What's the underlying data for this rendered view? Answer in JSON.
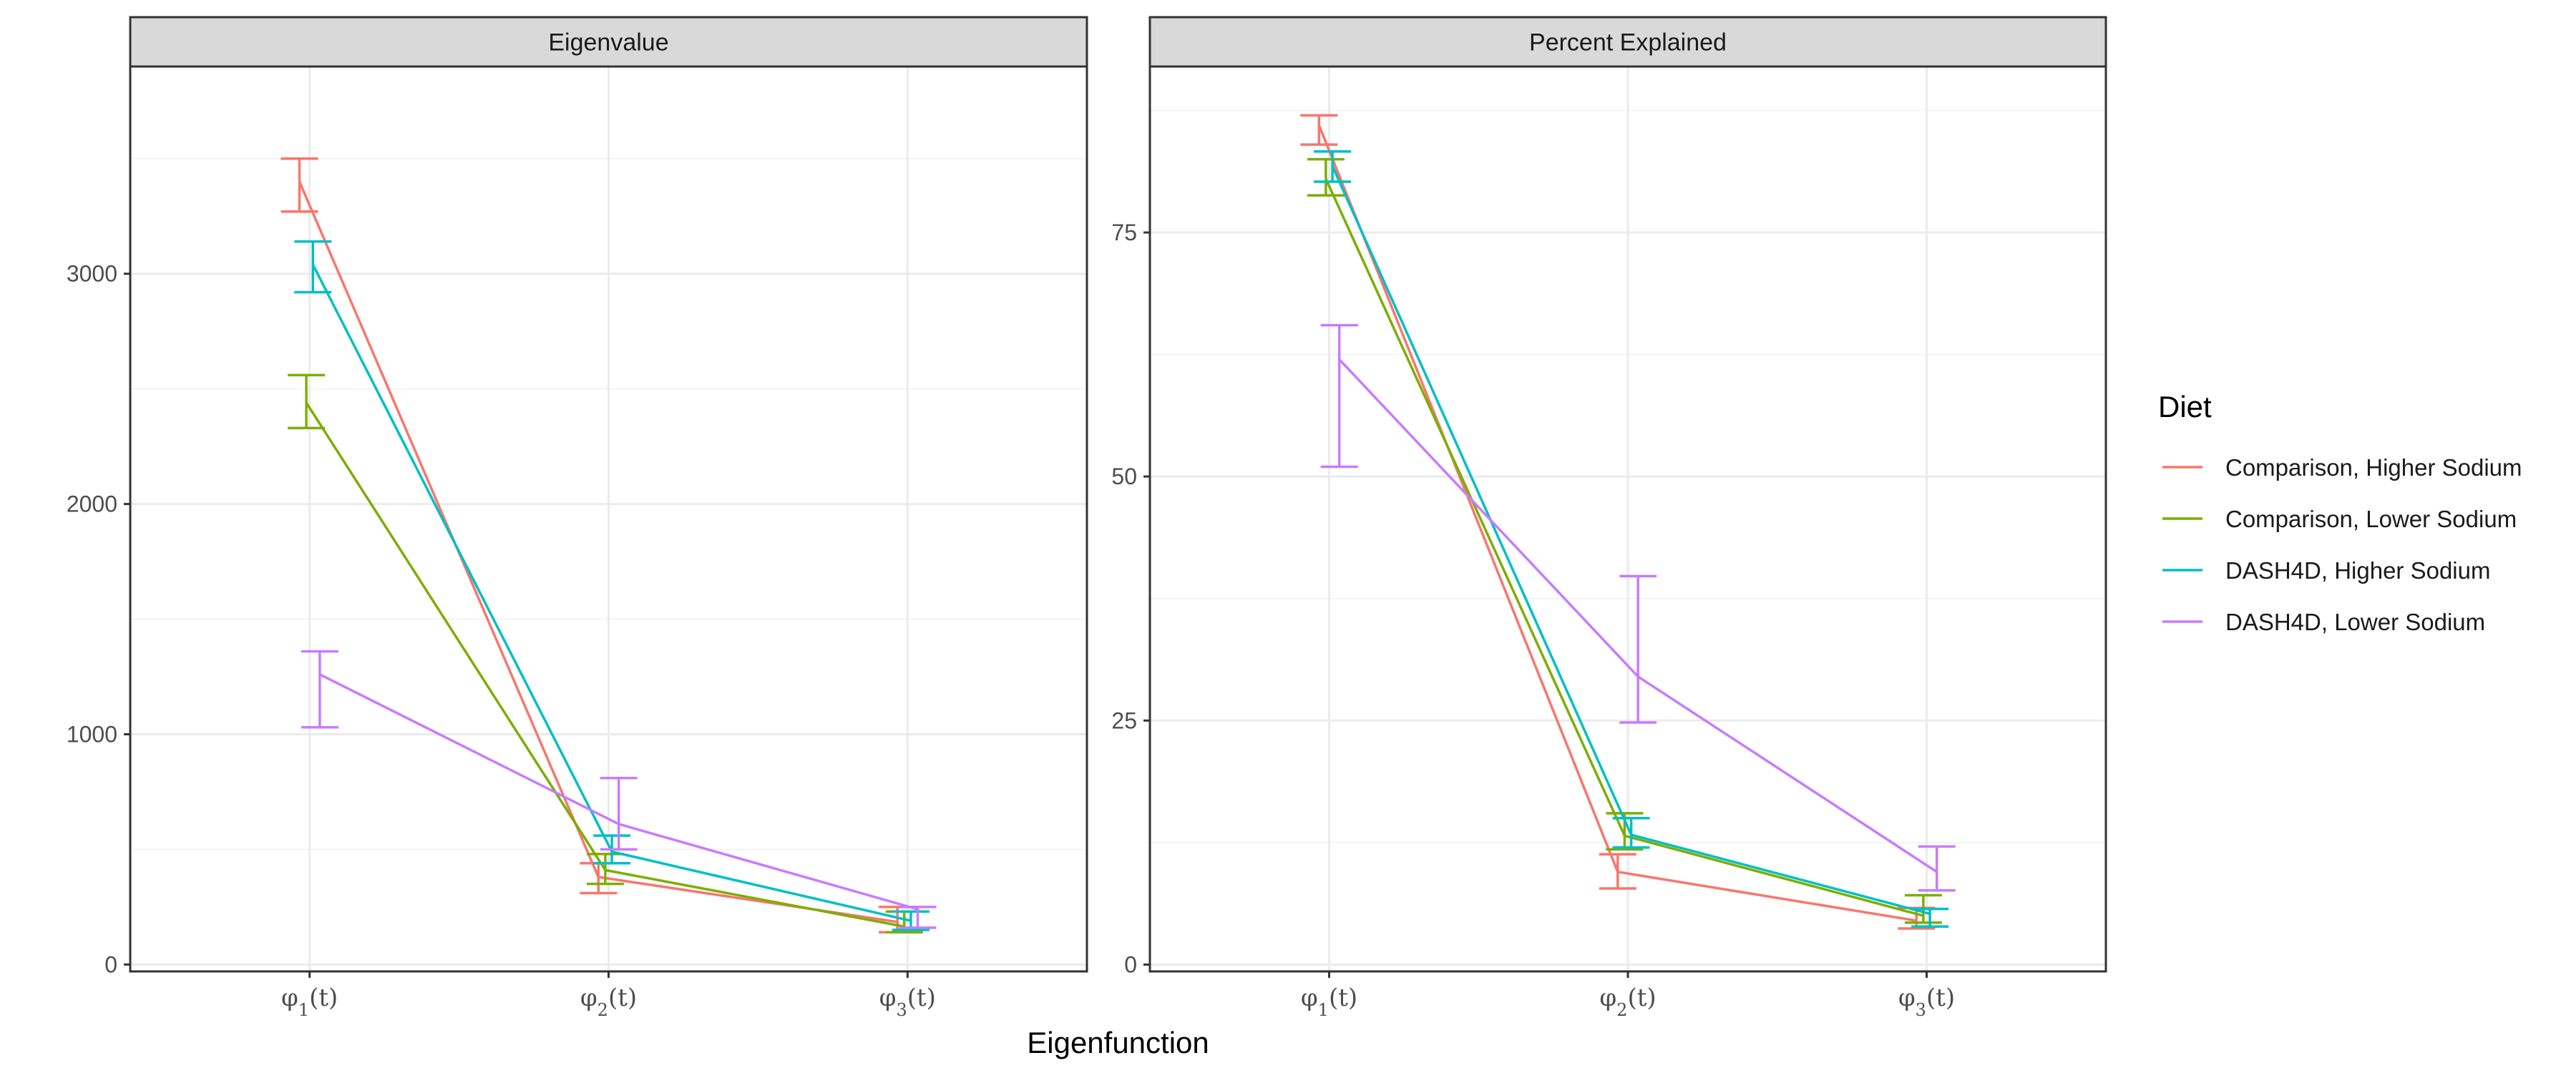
{
  "chart_data": {
    "type": "line",
    "xlabel": "Eigenfunction",
    "legend": {
      "title": "Diet",
      "position": "right"
    },
    "grid": true,
    "categories": [
      {
        "base": "φ",
        "sub": "1",
        "tail": "(t)"
      },
      {
        "base": "φ",
        "sub": "2",
        "tail": "(t)"
      },
      {
        "base": "φ",
        "sub": "3",
        "tail": "(t)"
      }
    ],
    "series_names": [
      "Comparison, Higher Sodium",
      "Comparison, Lower Sodium",
      "DASH4D, Higher Sodium",
      "DASH4D, Lower Sodium"
    ],
    "colors": [
      "#F8766D",
      "#7CAE00",
      "#00BFC4",
      "#C77CFF"
    ],
    "panels": [
      {
        "title": "Eigenvalue",
        "ylim": [
          -30,
          3900
        ],
        "yticks": [
          0,
          1000,
          2000,
          3000
        ],
        "series": [
          {
            "values": [
              3400,
              380,
              185
            ],
            "lower": [
              3270,
              310,
              140
            ],
            "upper": [
              3500,
              440,
              250
            ]
          },
          {
            "values": [
              2440,
              410,
              165
            ],
            "lower": [
              2330,
              350,
              140
            ],
            "upper": [
              2560,
              480,
              230
            ]
          },
          {
            "values": [
              3040,
              490,
              190
            ],
            "lower": [
              2920,
              440,
              150
            ],
            "upper": [
              3140,
              560,
              230
            ]
          },
          {
            "values": [
              1260,
              610,
              240
            ],
            "lower": [
              1030,
              500,
              160
            ],
            "upper": [
              1360,
              810,
              250
            ]
          }
        ]
      },
      {
        "title": "Percent Explained",
        "ylim": [
          -0.7,
          92
        ],
        "yticks": [
          0,
          25,
          50,
          75
        ],
        "series": [
          {
            "values": [
              86,
              9.5,
              4.5
            ],
            "lower": [
              84,
              7.8,
              3.7
            ],
            "upper": [
              87,
              11.3,
              5.8
            ]
          },
          {
            "values": [
              80.5,
              13.2,
              5
            ],
            "lower": [
              78.8,
              11.8,
              4.3
            ],
            "upper": [
              82.5,
              15.5,
              7.1
            ]
          },
          {
            "values": [
              81.8,
              13.3,
              5.2
            ],
            "lower": [
              80.2,
              12,
              3.9
            ],
            "upper": [
              83.3,
              15,
              5.7
            ]
          },
          {
            "values": [
              62,
              29.5,
              9.5
            ],
            "lower": [
              51,
              24.8,
              7.6
            ],
            "upper": [
              65.5,
              39.8,
              12.1
            ]
          }
        ]
      }
    ]
  }
}
